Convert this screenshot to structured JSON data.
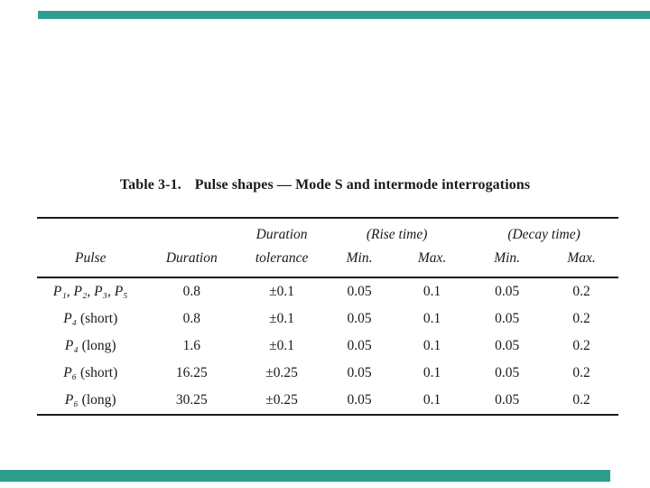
{
  "accent_color": "#2f9e8e",
  "caption": {
    "label": "Table 3-1.",
    "title": "Pulse shapes — Mode S and intermode interrogations"
  },
  "table": {
    "column_groups": {
      "rise": "(Rise time)",
      "decay": "(Decay time)"
    },
    "columns": {
      "pulse": "Pulse",
      "duration": "Duration",
      "tolerance_line1": "Duration",
      "tolerance_line2": "tolerance",
      "rise_min": "Min.",
      "rise_max": "Max.",
      "decay_min": "Min.",
      "decay_max": "Max."
    },
    "rows": [
      {
        "pulse_sym": "P₁, P₂, P₃, P₅",
        "pulse_note": "",
        "duration": "0.8",
        "tolerance": "±0.1",
        "rise_min": "0.05",
        "rise_max": "0.1",
        "decay_min": "0.05",
        "decay_max": "0.2"
      },
      {
        "pulse_sym": "P₄",
        "pulse_note": " (short)",
        "duration": "0.8",
        "tolerance": "±0.1",
        "rise_min": "0.05",
        "rise_max": "0.1",
        "decay_min": "0.05",
        "decay_max": "0.2"
      },
      {
        "pulse_sym": "P₄",
        "pulse_note": " (long)",
        "duration": "1.6",
        "tolerance": "±0.1",
        "rise_min": "0.05",
        "rise_max": "0.1",
        "decay_min": "0.05",
        "decay_max": "0.2"
      },
      {
        "pulse_sym": "P₆",
        "pulse_note": " (short)",
        "duration": "16.25",
        "tolerance": "±0.25",
        "rise_min": "0.05",
        "rise_max": "0.1",
        "decay_min": "0.05",
        "decay_max": "0.2"
      },
      {
        "pulse_sym": "P₆",
        "pulse_note": " (long)",
        "duration": "30.25",
        "tolerance": "±0.25",
        "rise_min": "0.05",
        "rise_max": "0.1",
        "decay_min": "0.05",
        "decay_max": "0.2"
      }
    ]
  }
}
